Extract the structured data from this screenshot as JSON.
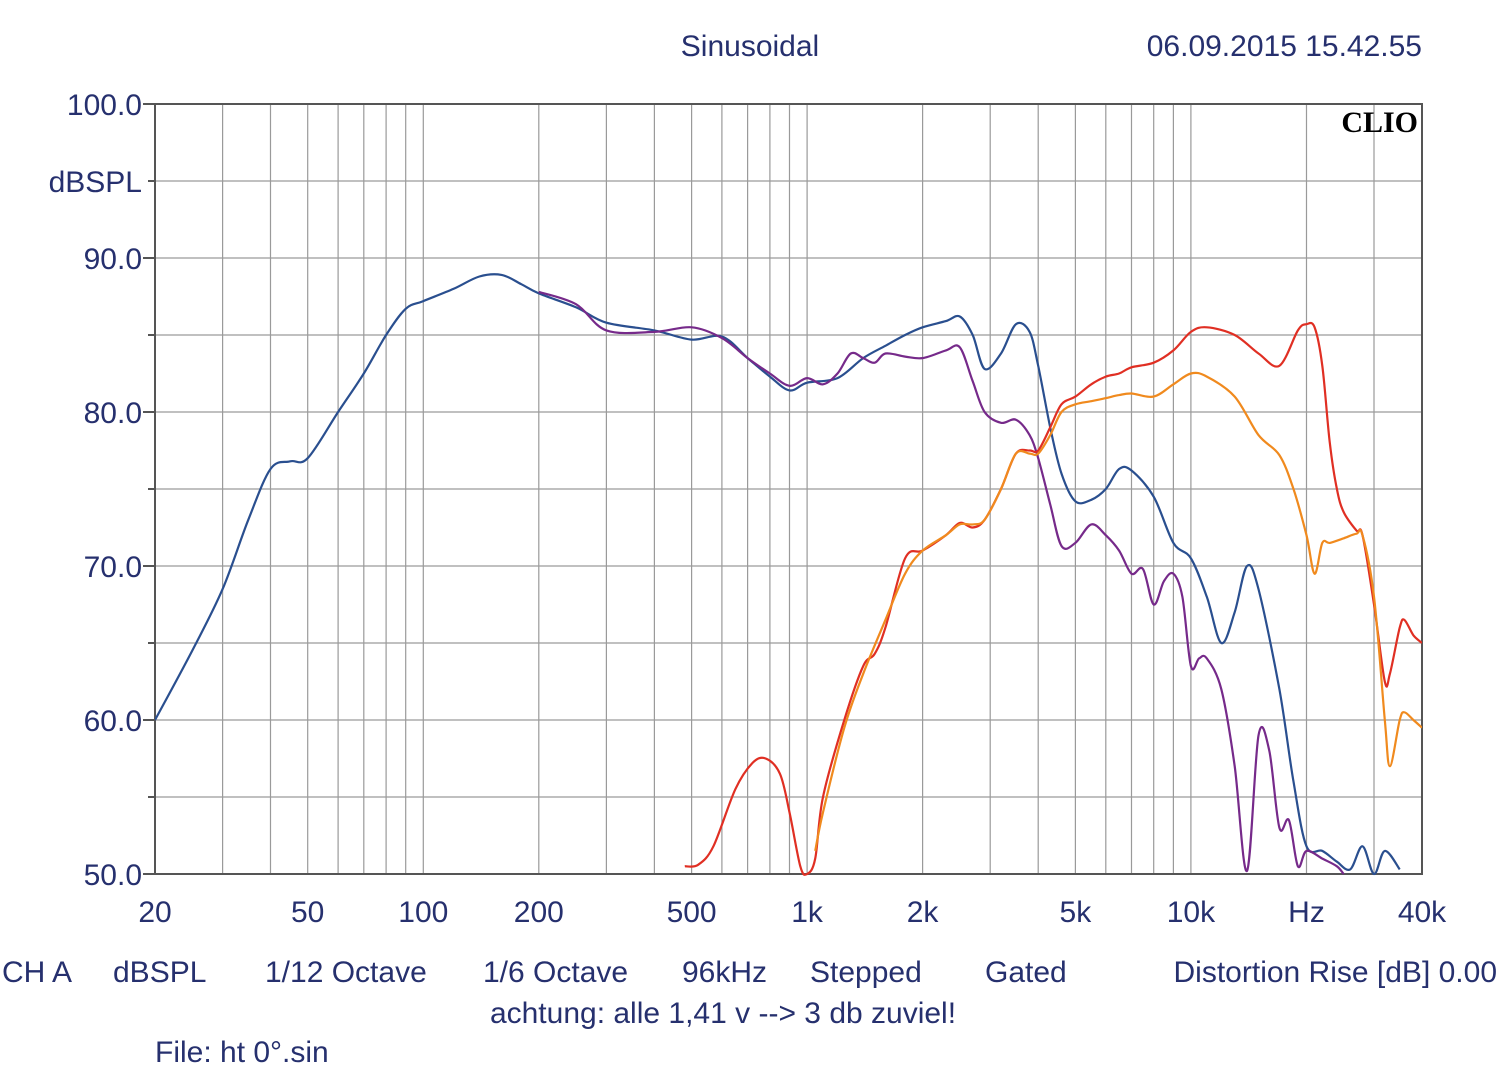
{
  "header": {
    "mode": "Sinusoidal",
    "timestamp": "06.09.2015 15.42.55",
    "brand": "CLIO"
  },
  "footer": {
    "status_items": [
      "CH A",
      "dBSPL",
      "1/12 Octave",
      "1/6 Octave",
      "96kHz",
      "Stepped",
      "Gated",
      "Distortion Rise [dB] 0.00"
    ],
    "note": "achtung: alle 1,41 v --> 3 db zuviel!",
    "file": "File: ht 0°.sin"
  },
  "colors": {
    "axis_text": "#26306e",
    "grid": "#9a9a9a",
    "frame": "#555555",
    "blue": "#2a4f8f",
    "purple": "#762a8a",
    "red": "#e02f23",
    "orange": "#f08a1e"
  },
  "chart_data": {
    "type": "line",
    "x_scale": "log",
    "xlim": [
      20,
      40000
    ],
    "ylim": [
      50,
      100
    ],
    "ylabel": "dBSPL",
    "xlabel": "Hz",
    "x_ticks": [
      {
        "value": 20,
        "label": "20"
      },
      {
        "value": 50,
        "label": "50"
      },
      {
        "value": 100,
        "label": "100"
      },
      {
        "value": 200,
        "label": "200"
      },
      {
        "value": 500,
        "label": "500"
      },
      {
        "value": 1000,
        "label": "1k"
      },
      {
        "value": 2000,
        "label": "2k"
      },
      {
        "value": 5000,
        "label": "5k"
      },
      {
        "value": 10000,
        "label": "10k"
      },
      {
        "value": 20000,
        "label": "Hz"
      },
      {
        "value": 40000,
        "label": "40k"
      }
    ],
    "y_ticks": [
      {
        "value": 100,
        "label": "100.0"
      },
      {
        "value": 90,
        "label": "90.0"
      },
      {
        "value": 80,
        "label": "80.0"
      },
      {
        "value": 70,
        "label": "70.0"
      },
      {
        "value": 60,
        "label": "60.0"
      },
      {
        "value": 50,
        "label": "50.0"
      }
    ],
    "grid": true,
    "series": [
      {
        "color": "#2a4f8f",
        "points": [
          [
            20,
            60
          ],
          [
            25,
            64.5
          ],
          [
            30,
            68.5
          ],
          [
            35,
            73
          ],
          [
            40,
            76.3
          ],
          [
            45,
            76.8
          ],
          [
            50,
            77
          ],
          [
            60,
            80
          ],
          [
            70,
            82.5
          ],
          [
            80,
            85
          ],
          [
            90,
            86.7
          ],
          [
            100,
            87.2
          ],
          [
            120,
            88
          ],
          [
            140,
            88.8
          ],
          [
            160,
            88.9
          ],
          [
            180,
            88.3
          ],
          [
            200,
            87.7
          ],
          [
            250,
            86.8
          ],
          [
            300,
            85.8
          ],
          [
            400,
            85.3
          ],
          [
            500,
            84.7
          ],
          [
            600,
            84.9
          ],
          [
            700,
            83.5
          ],
          [
            800,
            82.3
          ],
          [
            900,
            81.4
          ],
          [
            1000,
            81.9
          ],
          [
            1200,
            82.2
          ],
          [
            1400,
            83.5
          ],
          [
            1600,
            84.3
          ],
          [
            1800,
            85
          ],
          [
            2000,
            85.5
          ],
          [
            2300,
            85.9
          ],
          [
            2500,
            86.2
          ],
          [
            2700,
            85
          ],
          [
            2900,
            82.8
          ],
          [
            3200,
            83.8
          ],
          [
            3500,
            85.7
          ],
          [
            3800,
            85.2
          ],
          [
            4000,
            83
          ],
          [
            4300,
            79
          ],
          [
            4600,
            76
          ],
          [
            5000,
            74.2
          ],
          [
            5500,
            74.3
          ],
          [
            6000,
            75
          ],
          [
            6500,
            76.3
          ],
          [
            7000,
            76.2
          ],
          [
            8000,
            74.5
          ],
          [
            9000,
            71.5
          ],
          [
            10000,
            70.5
          ],
          [
            11000,
            68
          ],
          [
            12000,
            65
          ],
          [
            13000,
            67
          ],
          [
            14000,
            70
          ],
          [
            15000,
            68.5
          ],
          [
            17000,
            62
          ],
          [
            18500,
            56
          ],
          [
            20000,
            51.8
          ],
          [
            22000,
            51.5
          ],
          [
            24000,
            50.8
          ],
          [
            26000,
            50.3
          ],
          [
            28000,
            51.8
          ],
          [
            30000,
            50
          ],
          [
            32000,
            51.5
          ],
          [
            35000,
            50.3
          ]
        ]
      },
      {
        "color": "#762a8a",
        "points": [
          [
            200,
            87.8
          ],
          [
            250,
            87
          ],
          [
            300,
            85.3
          ],
          [
            400,
            85.2
          ],
          [
            500,
            85.5
          ],
          [
            600,
            84.8
          ],
          [
            700,
            83.5
          ],
          [
            800,
            82.5
          ],
          [
            900,
            81.7
          ],
          [
            1000,
            82.2
          ],
          [
            1100,
            81.8
          ],
          [
            1200,
            82.5
          ],
          [
            1300,
            83.8
          ],
          [
            1400,
            83.5
          ],
          [
            1500,
            83.2
          ],
          [
            1600,
            83.8
          ],
          [
            1800,
            83.6
          ],
          [
            2000,
            83.5
          ],
          [
            2300,
            84
          ],
          [
            2500,
            84.2
          ],
          [
            2700,
            82
          ],
          [
            2900,
            80
          ],
          [
            3200,
            79.3
          ],
          [
            3500,
            79.5
          ],
          [
            3800,
            78.5
          ],
          [
            4000,
            77
          ],
          [
            4300,
            74
          ],
          [
            4600,
            71.3
          ],
          [
            5000,
            71.5
          ],
          [
            5500,
            72.7
          ],
          [
            6000,
            72
          ],
          [
            6500,
            71
          ],
          [
            7000,
            69.5
          ],
          [
            7500,
            69.8
          ],
          [
            8000,
            67.5
          ],
          [
            8500,
            69
          ],
          [
            9000,
            69.5
          ],
          [
            9500,
            68
          ],
          [
            10000,
            63.5
          ],
          [
            10500,
            64
          ],
          [
            11000,
            64
          ],
          [
            12000,
            62
          ],
          [
            13000,
            57
          ],
          [
            14000,
            50.2
          ],
          [
            15000,
            59
          ],
          [
            16000,
            58
          ],
          [
            17000,
            53
          ],
          [
            18000,
            53.5
          ],
          [
            19000,
            50.5
          ],
          [
            20000,
            51.5
          ],
          [
            22000,
            51
          ],
          [
            24000,
            50.5
          ],
          [
            25000,
            50
          ]
        ]
      },
      {
        "color": "#e02f23",
        "points": [
          [
            480,
            50.5
          ],
          [
            520,
            50.6
          ],
          [
            570,
            51.8
          ],
          [
            650,
            55.5
          ],
          [
            720,
            57.2
          ],
          [
            780,
            57.5
          ],
          [
            850,
            56.5
          ],
          [
            900,
            54
          ],
          [
            960,
            50.5
          ],
          [
            1000,
            50
          ],
          [
            1050,
            51
          ],
          [
            1100,
            55
          ],
          [
            1250,
            60
          ],
          [
            1400,
            63.5
          ],
          [
            1500,
            64.3
          ],
          [
            1600,
            66
          ],
          [
            1800,
            70.5
          ],
          [
            2000,
            71
          ],
          [
            2300,
            72
          ],
          [
            2500,
            72.8
          ],
          [
            2700,
            72.5
          ],
          [
            2900,
            73
          ],
          [
            3200,
            75
          ],
          [
            3500,
            77.3
          ],
          [
            3800,
            77.5
          ],
          [
            4000,
            77.5
          ],
          [
            4300,
            79
          ],
          [
            4600,
            80.5
          ],
          [
            5000,
            81
          ],
          [
            5500,
            81.8
          ],
          [
            6000,
            82.3
          ],
          [
            6500,
            82.5
          ],
          [
            7000,
            82.9
          ],
          [
            8000,
            83.2
          ],
          [
            9000,
            84
          ],
          [
            10000,
            85.2
          ],
          [
            11000,
            85.5
          ],
          [
            13000,
            85
          ],
          [
            15000,
            83.8
          ],
          [
            17000,
            83
          ],
          [
            19000,
            85.3
          ],
          [
            20000,
            85.7
          ],
          [
            21000,
            85.5
          ],
          [
            22000,
            83
          ],
          [
            23000,
            78
          ],
          [
            24000,
            75
          ],
          [
            25000,
            73.5
          ],
          [
            27000,
            72.3
          ],
          [
            28000,
            72
          ],
          [
            30000,
            67.5
          ],
          [
            32000,
            62.5
          ],
          [
            33000,
            63
          ],
          [
            35000,
            66
          ],
          [
            36000,
            66.5
          ],
          [
            38000,
            65.5
          ],
          [
            40000,
            65
          ]
        ]
      },
      {
        "color": "#f08a1e",
        "points": [
          [
            1050,
            51.5
          ],
          [
            1100,
            54
          ],
          [
            1250,
            59.5
          ],
          [
            1400,
            63
          ],
          [
            1600,
            66.5
          ],
          [
            1800,
            69.5
          ],
          [
            2000,
            71
          ],
          [
            2300,
            72
          ],
          [
            2500,
            72.7
          ],
          [
            2700,
            72.7
          ],
          [
            2900,
            73
          ],
          [
            3200,
            75
          ],
          [
            3500,
            77.3
          ],
          [
            3800,
            77.3
          ],
          [
            4000,
            77.3
          ],
          [
            4300,
            78.5
          ],
          [
            4600,
            80
          ],
          [
            5000,
            80.5
          ],
          [
            5500,
            80.7
          ],
          [
            6000,
            80.9
          ],
          [
            6500,
            81.1
          ],
          [
            7000,
            81.2
          ],
          [
            8000,
            81
          ],
          [
            9000,
            81.8
          ],
          [
            10000,
            82.5
          ],
          [
            11000,
            82.3
          ],
          [
            13000,
            81
          ],
          [
            15000,
            78.5
          ],
          [
            17000,
            77.2
          ],
          [
            18500,
            75
          ],
          [
            20000,
            72
          ],
          [
            21000,
            69.5
          ],
          [
            22000,
            71.5
          ],
          [
            23000,
            71.5
          ],
          [
            25000,
            71.8
          ],
          [
            27000,
            72.1
          ],
          [
            28000,
            72
          ],
          [
            30000,
            68
          ],
          [
            32000,
            60
          ],
          [
            33000,
            57
          ],
          [
            35000,
            60
          ],
          [
            36000,
            60.5
          ],
          [
            38000,
            60
          ],
          [
            40000,
            59.5
          ]
        ]
      }
    ]
  }
}
